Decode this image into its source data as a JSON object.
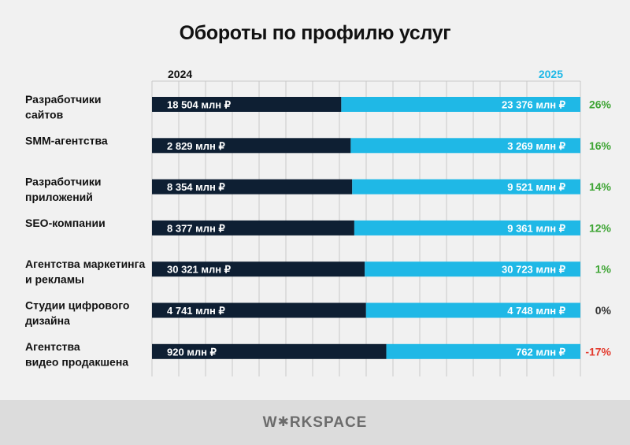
{
  "title": "Обороты по профилю услуг",
  "colors": {
    "series_2024": "#0e1f33",
    "series_2025": "#1fb8e6",
    "positive": "#3fa535",
    "neutral": "#333333",
    "negative": "#e33b2e"
  },
  "chart_data": {
    "type": "bar",
    "orientation": "horizontal",
    "stacked_normalized": true,
    "title": "Обороты по профилю услуг",
    "series_labels": [
      "2024",
      "2025"
    ],
    "categories": [
      "Разработчики сайтов",
      "SMM-агентства",
      "Разработчики приложений",
      "SEO-компании",
      "Агентства маркетинга и рекламы",
      "Студии цифрового дизайна",
      "Агентства видео продакшена"
    ],
    "category_lines": [
      [
        "Разработчики",
        "сайтов"
      ],
      [
        "SMM-агентства"
      ],
      [
        "Разработчики",
        "приложений"
      ],
      [
        "SEO-компании"
      ],
      [
        "Агентства маркетинга",
        "и рекламы"
      ],
      [
        "Студии цифрового",
        "дизайна"
      ],
      [
        "Агентства",
        "видео продакшена"
      ]
    ],
    "series": [
      {
        "name": "2024",
        "values": [
          18504,
          2829,
          8354,
          8377,
          30321,
          4741,
          920
        ]
      },
      {
        "name": "2025",
        "values": [
          23376,
          3269,
          9521,
          9361,
          30723,
          4748,
          762
        ]
      }
    ],
    "labels_2024": [
      "18 504 млн ₽",
      "2 829 млн ₽",
      "8 354 млн ₽",
      "8 377 млн ₽",
      "30 321 млн ₽",
      "4 741 млн ₽",
      "920 млн ₽"
    ],
    "labels_2025": [
      "23 376 млн ₽",
      "3 269 млн ₽",
      "9 521 млн ₽",
      "9 361 млн ₽",
      "30 723 млн ₽",
      "4 748 млн ₽",
      "762 млн ₽"
    ],
    "growth": [
      "26%",
      "16%",
      "14%",
      "12%",
      "1%",
      "0%",
      "-17%"
    ],
    "grid": true
  },
  "footer": {
    "logo_left": "W",
    "logo_star": "✱",
    "logo_right": "RKSPACE"
  }
}
